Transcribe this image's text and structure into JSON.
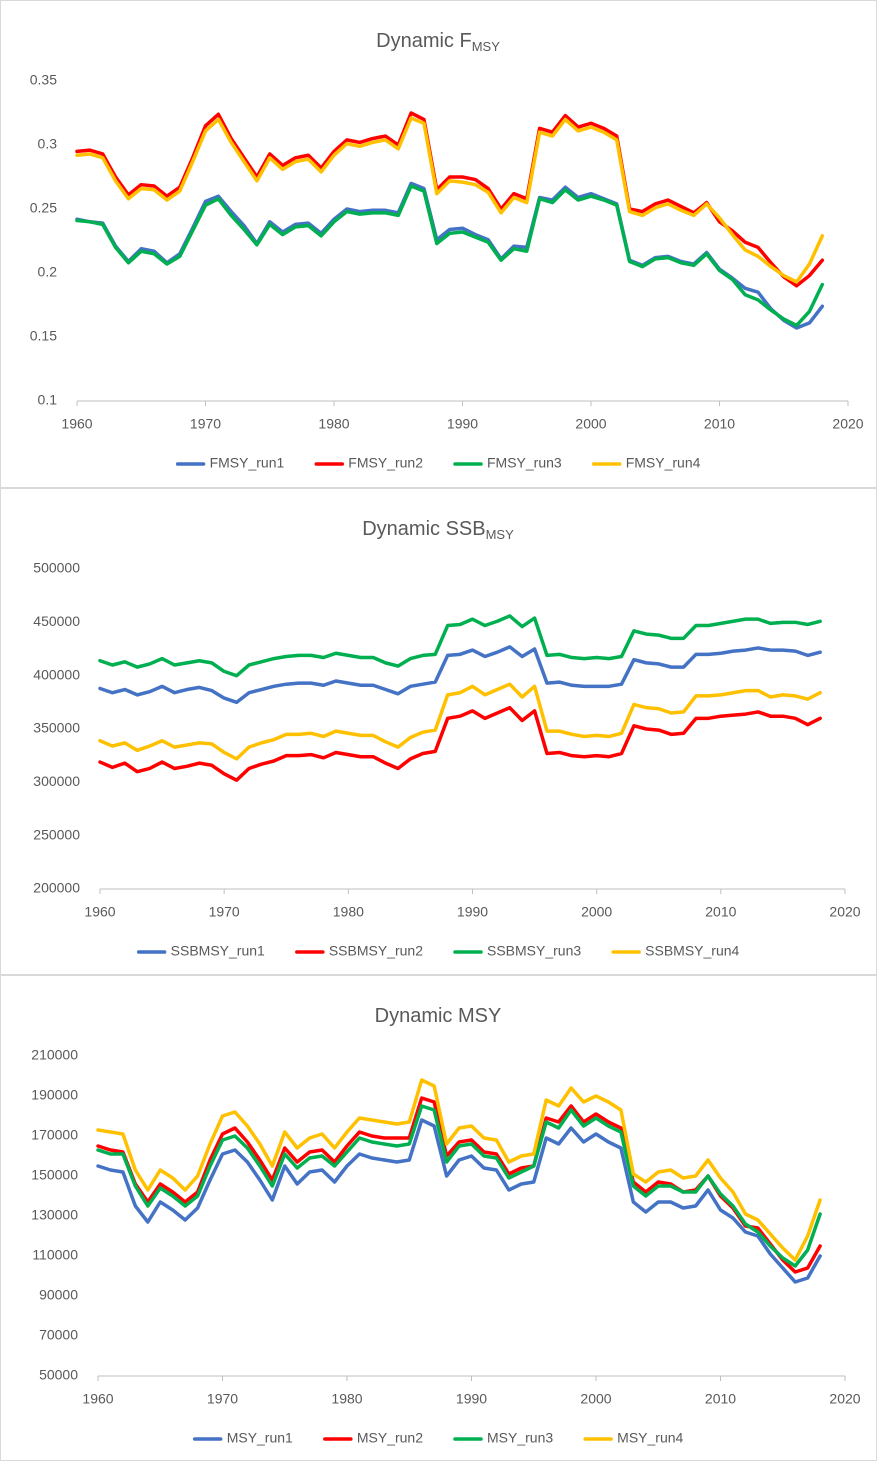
{
  "chart_data": [
    {
      "type": "line",
      "title": "Dynamic F",
      "title_sub": "MSY",
      "x": [
        1960,
        1961,
        1962,
        1963,
        1964,
        1965,
        1966,
        1967,
        1968,
        1969,
        1970,
        1971,
        1972,
        1973,
        1974,
        1975,
        1976,
        1977,
        1978,
        1979,
        1980,
        1981,
        1982,
        1983,
        1984,
        1985,
        1986,
        1987,
        1988,
        1989,
        1990,
        1991,
        1992,
        1993,
        1994,
        1995,
        1996,
        1997,
        1998,
        1999,
        2000,
        2001,
        2002,
        2003,
        2004,
        2005,
        2006,
        2007,
        2008,
        2009,
        2010,
        2011,
        2012,
        2013,
        2014,
        2015,
        2016,
        2017,
        2018
      ],
      "xlim": [
        1960,
        2020
      ],
      "xticks": [
        1960,
        1970,
        1980,
        1990,
        2000,
        2010,
        2020
      ],
      "ylim": [
        0.1,
        0.35
      ],
      "yticks": [
        0.1,
        0.15,
        0.2,
        0.25,
        0.3,
        0.35
      ],
      "grid": false,
      "legend": "bottom",
      "series": [
        {
          "name": "FMSY_run1",
          "color": "#4472c4",
          "values": [
            0.242,
            0.24,
            0.239,
            0.221,
            0.209,
            0.219,
            0.217,
            0.208,
            0.215,
            0.235,
            0.256,
            0.26,
            0.248,
            0.237,
            0.223,
            0.24,
            0.232,
            0.238,
            0.239,
            0.231,
            0.242,
            0.25,
            0.248,
            0.249,
            0.249,
            0.247,
            0.27,
            0.266,
            0.226,
            0.234,
            0.235,
            0.23,
            0.226,
            0.211,
            0.221,
            0.22,
            0.259,
            0.257,
            0.267,
            0.259,
            0.262,
            0.258,
            0.254,
            0.21,
            0.206,
            0.212,
            0.213,
            0.209,
            0.207,
            0.216,
            0.203,
            0.196,
            0.188,
            0.185,
            0.172,
            0.163,
            0.157,
            0.161,
            0.174
          ]
        },
        {
          "name": "FMSY_run2",
          "color": "#ff0000",
          "values": [
            0.295,
            0.296,
            0.293,
            0.275,
            0.261,
            0.269,
            0.268,
            0.26,
            0.267,
            0.29,
            0.315,
            0.324,
            0.305,
            0.29,
            0.275,
            0.293,
            0.284,
            0.29,
            0.292,
            0.282,
            0.295,
            0.304,
            0.302,
            0.305,
            0.307,
            0.3,
            0.325,
            0.32,
            0.265,
            0.275,
            0.275,
            0.273,
            0.266,
            0.25,
            0.262,
            0.258,
            0.313,
            0.31,
            0.323,
            0.314,
            0.317,
            0.313,
            0.307,
            0.25,
            0.248,
            0.254,
            0.257,
            0.252,
            0.247,
            0.255,
            0.24,
            0.233,
            0.224,
            0.22,
            0.208,
            0.197,
            0.19,
            0.198,
            0.21
          ]
        },
        {
          "name": "FMSY_run3",
          "color": "#00b050",
          "values": [
            0.241,
            0.24,
            0.238,
            0.22,
            0.208,
            0.217,
            0.215,
            0.207,
            0.213,
            0.233,
            0.253,
            0.258,
            0.245,
            0.234,
            0.222,
            0.238,
            0.23,
            0.236,
            0.237,
            0.229,
            0.24,
            0.248,
            0.246,
            0.247,
            0.247,
            0.245,
            0.268,
            0.264,
            0.223,
            0.231,
            0.232,
            0.228,
            0.224,
            0.21,
            0.219,
            0.217,
            0.258,
            0.255,
            0.265,
            0.257,
            0.26,
            0.257,
            0.253,
            0.209,
            0.205,
            0.211,
            0.212,
            0.208,
            0.206,
            0.215,
            0.202,
            0.195,
            0.183,
            0.179,
            0.171,
            0.164,
            0.159,
            0.17,
            0.191
          ]
        },
        {
          "name": "FMSY_run4",
          "color": "#ffc000",
          "values": [
            0.292,
            0.293,
            0.29,
            0.272,
            0.258,
            0.266,
            0.265,
            0.257,
            0.264,
            0.287,
            0.311,
            0.32,
            0.302,
            0.287,
            0.272,
            0.29,
            0.281,
            0.287,
            0.289,
            0.279,
            0.292,
            0.301,
            0.299,
            0.302,
            0.304,
            0.297,
            0.321,
            0.317,
            0.262,
            0.272,
            0.271,
            0.269,
            0.263,
            0.247,
            0.259,
            0.255,
            0.31,
            0.307,
            0.32,
            0.311,
            0.314,
            0.31,
            0.304,
            0.248,
            0.245,
            0.251,
            0.254,
            0.249,
            0.245,
            0.254,
            0.243,
            0.23,
            0.218,
            0.213,
            0.205,
            0.198,
            0.193,
            0.207,
            0.229
          ]
        }
      ]
    },
    {
      "type": "line",
      "title": "Dynamic SSB",
      "title_sub": "MSY",
      "x": [
        1960,
        1961,
        1962,
        1963,
        1964,
        1965,
        1966,
        1967,
        1968,
        1969,
        1970,
        1971,
        1972,
        1973,
        1974,
        1975,
        1976,
        1977,
        1978,
        1979,
        1980,
        1981,
        1982,
        1983,
        1984,
        1985,
        1986,
        1987,
        1988,
        1989,
        1990,
        1991,
        1992,
        1993,
        1994,
        1995,
        1996,
        1997,
        1998,
        1999,
        2000,
        2001,
        2002,
        2003,
        2004,
        2005,
        2006,
        2007,
        2008,
        2009,
        2010,
        2011,
        2012,
        2013,
        2014,
        2015,
        2016,
        2017,
        2018
      ],
      "xlim": [
        1960,
        2020
      ],
      "xticks": [
        1960,
        1970,
        1980,
        1990,
        2000,
        2010,
        2020
      ],
      "ylim": [
        200000,
        500000
      ],
      "yticks": [
        200000,
        250000,
        300000,
        350000,
        400000,
        450000,
        500000
      ],
      "grid": false,
      "legend": "bottom",
      "series": [
        {
          "name": "SSBMSY_run1",
          "color": "#4472c4",
          "values": [
            388000,
            384000,
            387000,
            382000,
            385000,
            390000,
            384000,
            387000,
            389000,
            386000,
            379000,
            375000,
            384000,
            387000,
            390000,
            392000,
            393000,
            393000,
            391000,
            395000,
            393000,
            391000,
            391000,
            387000,
            383000,
            390000,
            392000,
            394000,
            419000,
            420000,
            424000,
            418000,
            422000,
            427000,
            418000,
            425000,
            393000,
            394000,
            391000,
            390000,
            390000,
            390000,
            392000,
            415000,
            412000,
            411000,
            408000,
            408000,
            420000,
            420000,
            421000,
            423000,
            424000,
            426000,
            424000,
            424000,
            423000,
            419000,
            422000
          ]
        },
        {
          "name": "SSBMSY_run2",
          "color": "#ff0000",
          "values": [
            319000,
            314000,
            318000,
            310000,
            313000,
            319000,
            313000,
            315000,
            318000,
            316000,
            308000,
            302000,
            313000,
            317000,
            320000,
            325000,
            325000,
            326000,
            323000,
            328000,
            326000,
            324000,
            324000,
            318000,
            313000,
            322000,
            327000,
            329000,
            360000,
            362000,
            367000,
            360000,
            365000,
            370000,
            358000,
            367000,
            327000,
            328000,
            325000,
            324000,
            325000,
            324000,
            327000,
            353000,
            350000,
            349000,
            345000,
            346000,
            360000,
            360000,
            362000,
            363000,
            364000,
            366000,
            362000,
            362000,
            360000,
            354000,
            360000
          ]
        },
        {
          "name": "SSBMSY_run3",
          "color": "#00b050",
          "values": [
            414000,
            410000,
            413000,
            408000,
            411000,
            416000,
            410000,
            412000,
            414000,
            412000,
            404000,
            400000,
            410000,
            413000,
            416000,
            418000,
            419000,
            419000,
            417000,
            421000,
            419000,
            417000,
            417000,
            412000,
            409000,
            416000,
            419000,
            420000,
            447000,
            448000,
            453000,
            447000,
            451000,
            456000,
            446000,
            454000,
            419000,
            420000,
            417000,
            416000,
            417000,
            416000,
            418000,
            442000,
            439000,
            438000,
            435000,
            435000,
            447000,
            447000,
            449000,
            451000,
            453000,
            453000,
            449000,
            450000,
            450000,
            448000,
            451000
          ]
        },
        {
          "name": "SSBMSY_run4",
          "color": "#ffc000",
          "values": [
            339000,
            334000,
            337000,
            330000,
            334000,
            339000,
            333000,
            335000,
            337000,
            336000,
            328000,
            322000,
            333000,
            337000,
            340000,
            345000,
            345000,
            346000,
            343000,
            348000,
            346000,
            344000,
            344000,
            338000,
            333000,
            342000,
            347000,
            349000,
            382000,
            384000,
            390000,
            382000,
            387000,
            392000,
            380000,
            390000,
            348000,
            348000,
            345000,
            343000,
            344000,
            343000,
            346000,
            373000,
            370000,
            369000,
            365000,
            366000,
            381000,
            381000,
            382000,
            384000,
            386000,
            386000,
            380000,
            382000,
            381000,
            378000,
            384000
          ]
        }
      ]
    },
    {
      "type": "line",
      "title": "Dynamic MSY",
      "x": [
        1960,
        1961,
        1962,
        1963,
        1964,
        1965,
        1966,
        1967,
        1968,
        1969,
        1970,
        1971,
        1972,
        1973,
        1974,
        1975,
        1976,
        1977,
        1978,
        1979,
        1980,
        1981,
        1982,
        1983,
        1984,
        1985,
        1986,
        1987,
        1988,
        1989,
        1990,
        1991,
        1992,
        1993,
        1994,
        1995,
        1996,
        1997,
        1998,
        1999,
        2000,
        2001,
        2002,
        2003,
        2004,
        2005,
        2006,
        2007,
        2008,
        2009,
        2010,
        2011,
        2012,
        2013,
        2014,
        2015,
        2016,
        2017,
        2018
      ],
      "xlim": [
        1960,
        2020
      ],
      "xticks": [
        1960,
        1970,
        1980,
        1990,
        2000,
        2010,
        2020
      ],
      "ylim": [
        50000,
        210000
      ],
      "yticks": [
        50000,
        70000,
        90000,
        110000,
        130000,
        150000,
        170000,
        190000,
        210000
      ],
      "grid": false,
      "legend": "bottom",
      "series": [
        {
          "name": "MSY_run1",
          "color": "#4472c4",
          "values": [
            155000,
            153000,
            152000,
            135000,
            127000,
            137000,
            133000,
            128000,
            134000,
            148000,
            161000,
            163000,
            157000,
            148000,
            138000,
            155000,
            146000,
            152000,
            153000,
            147000,
            155000,
            161000,
            159000,
            158000,
            157000,
            158000,
            178000,
            175000,
            150000,
            158000,
            160000,
            154000,
            153000,
            143000,
            146000,
            147000,
            169000,
            166000,
            174000,
            167000,
            171000,
            167000,
            164000,
            137000,
            132000,
            137000,
            137000,
            134000,
            135000,
            143000,
            133000,
            129000,
            122000,
            120000,
            111000,
            104000,
            97000,
            99000,
            110000
          ]
        },
        {
          "name": "MSY_run2",
          "color": "#ff0000",
          "values": [
            165000,
            163000,
            162000,
            146000,
            137000,
            146000,
            142000,
            137000,
            142000,
            158000,
            171000,
            174000,
            167000,
            158000,
            148000,
            164000,
            157000,
            162000,
            163000,
            157000,
            165000,
            172000,
            170000,
            169000,
            169000,
            169000,
            189000,
            187000,
            160000,
            167000,
            168000,
            162000,
            161000,
            151000,
            154000,
            155000,
            179000,
            177000,
            185000,
            177000,
            181000,
            177000,
            174000,
            147000,
            142000,
            147000,
            146000,
            142000,
            143000,
            150000,
            140000,
            134000,
            125000,
            124000,
            116000,
            108000,
            102000,
            104000,
            115000
          ]
        },
        {
          "name": "MSY_run3",
          "color": "#00b050",
          "values": [
            163000,
            161000,
            161000,
            145000,
            135000,
            144000,
            140000,
            135000,
            140000,
            155000,
            168000,
            170000,
            164000,
            155000,
            145000,
            161000,
            154000,
            159000,
            160000,
            155000,
            162000,
            169000,
            167000,
            166000,
            165000,
            166000,
            185000,
            183000,
            157000,
            165000,
            166000,
            160000,
            159000,
            149000,
            152000,
            155000,
            177000,
            174000,
            183000,
            175000,
            179000,
            175000,
            172000,
            145000,
            140000,
            145000,
            145000,
            142000,
            142000,
            150000,
            141000,
            135000,
            126000,
            122000,
            115000,
            109000,
            105000,
            113000,
            131000
          ]
        },
        {
          "name": "MSY_run4",
          "color": "#ffc000",
          "values": [
            173000,
            172000,
            171000,
            153000,
            143000,
            153000,
            149000,
            143000,
            150000,
            166000,
            180000,
            182000,
            175000,
            166000,
            155000,
            172000,
            164000,
            169000,
            171000,
            164000,
            172000,
            179000,
            178000,
            177000,
            176000,
            177000,
            198000,
            195000,
            166000,
            174000,
            175000,
            169000,
            168000,
            157000,
            160000,
            161000,
            188000,
            185000,
            194000,
            187000,
            190000,
            187000,
            183000,
            151000,
            147000,
            152000,
            153000,
            149000,
            150000,
            158000,
            149000,
            142000,
            131000,
            128000,
            121000,
            114000,
            108000,
            120000,
            138000
          ]
        }
      ]
    }
  ]
}
